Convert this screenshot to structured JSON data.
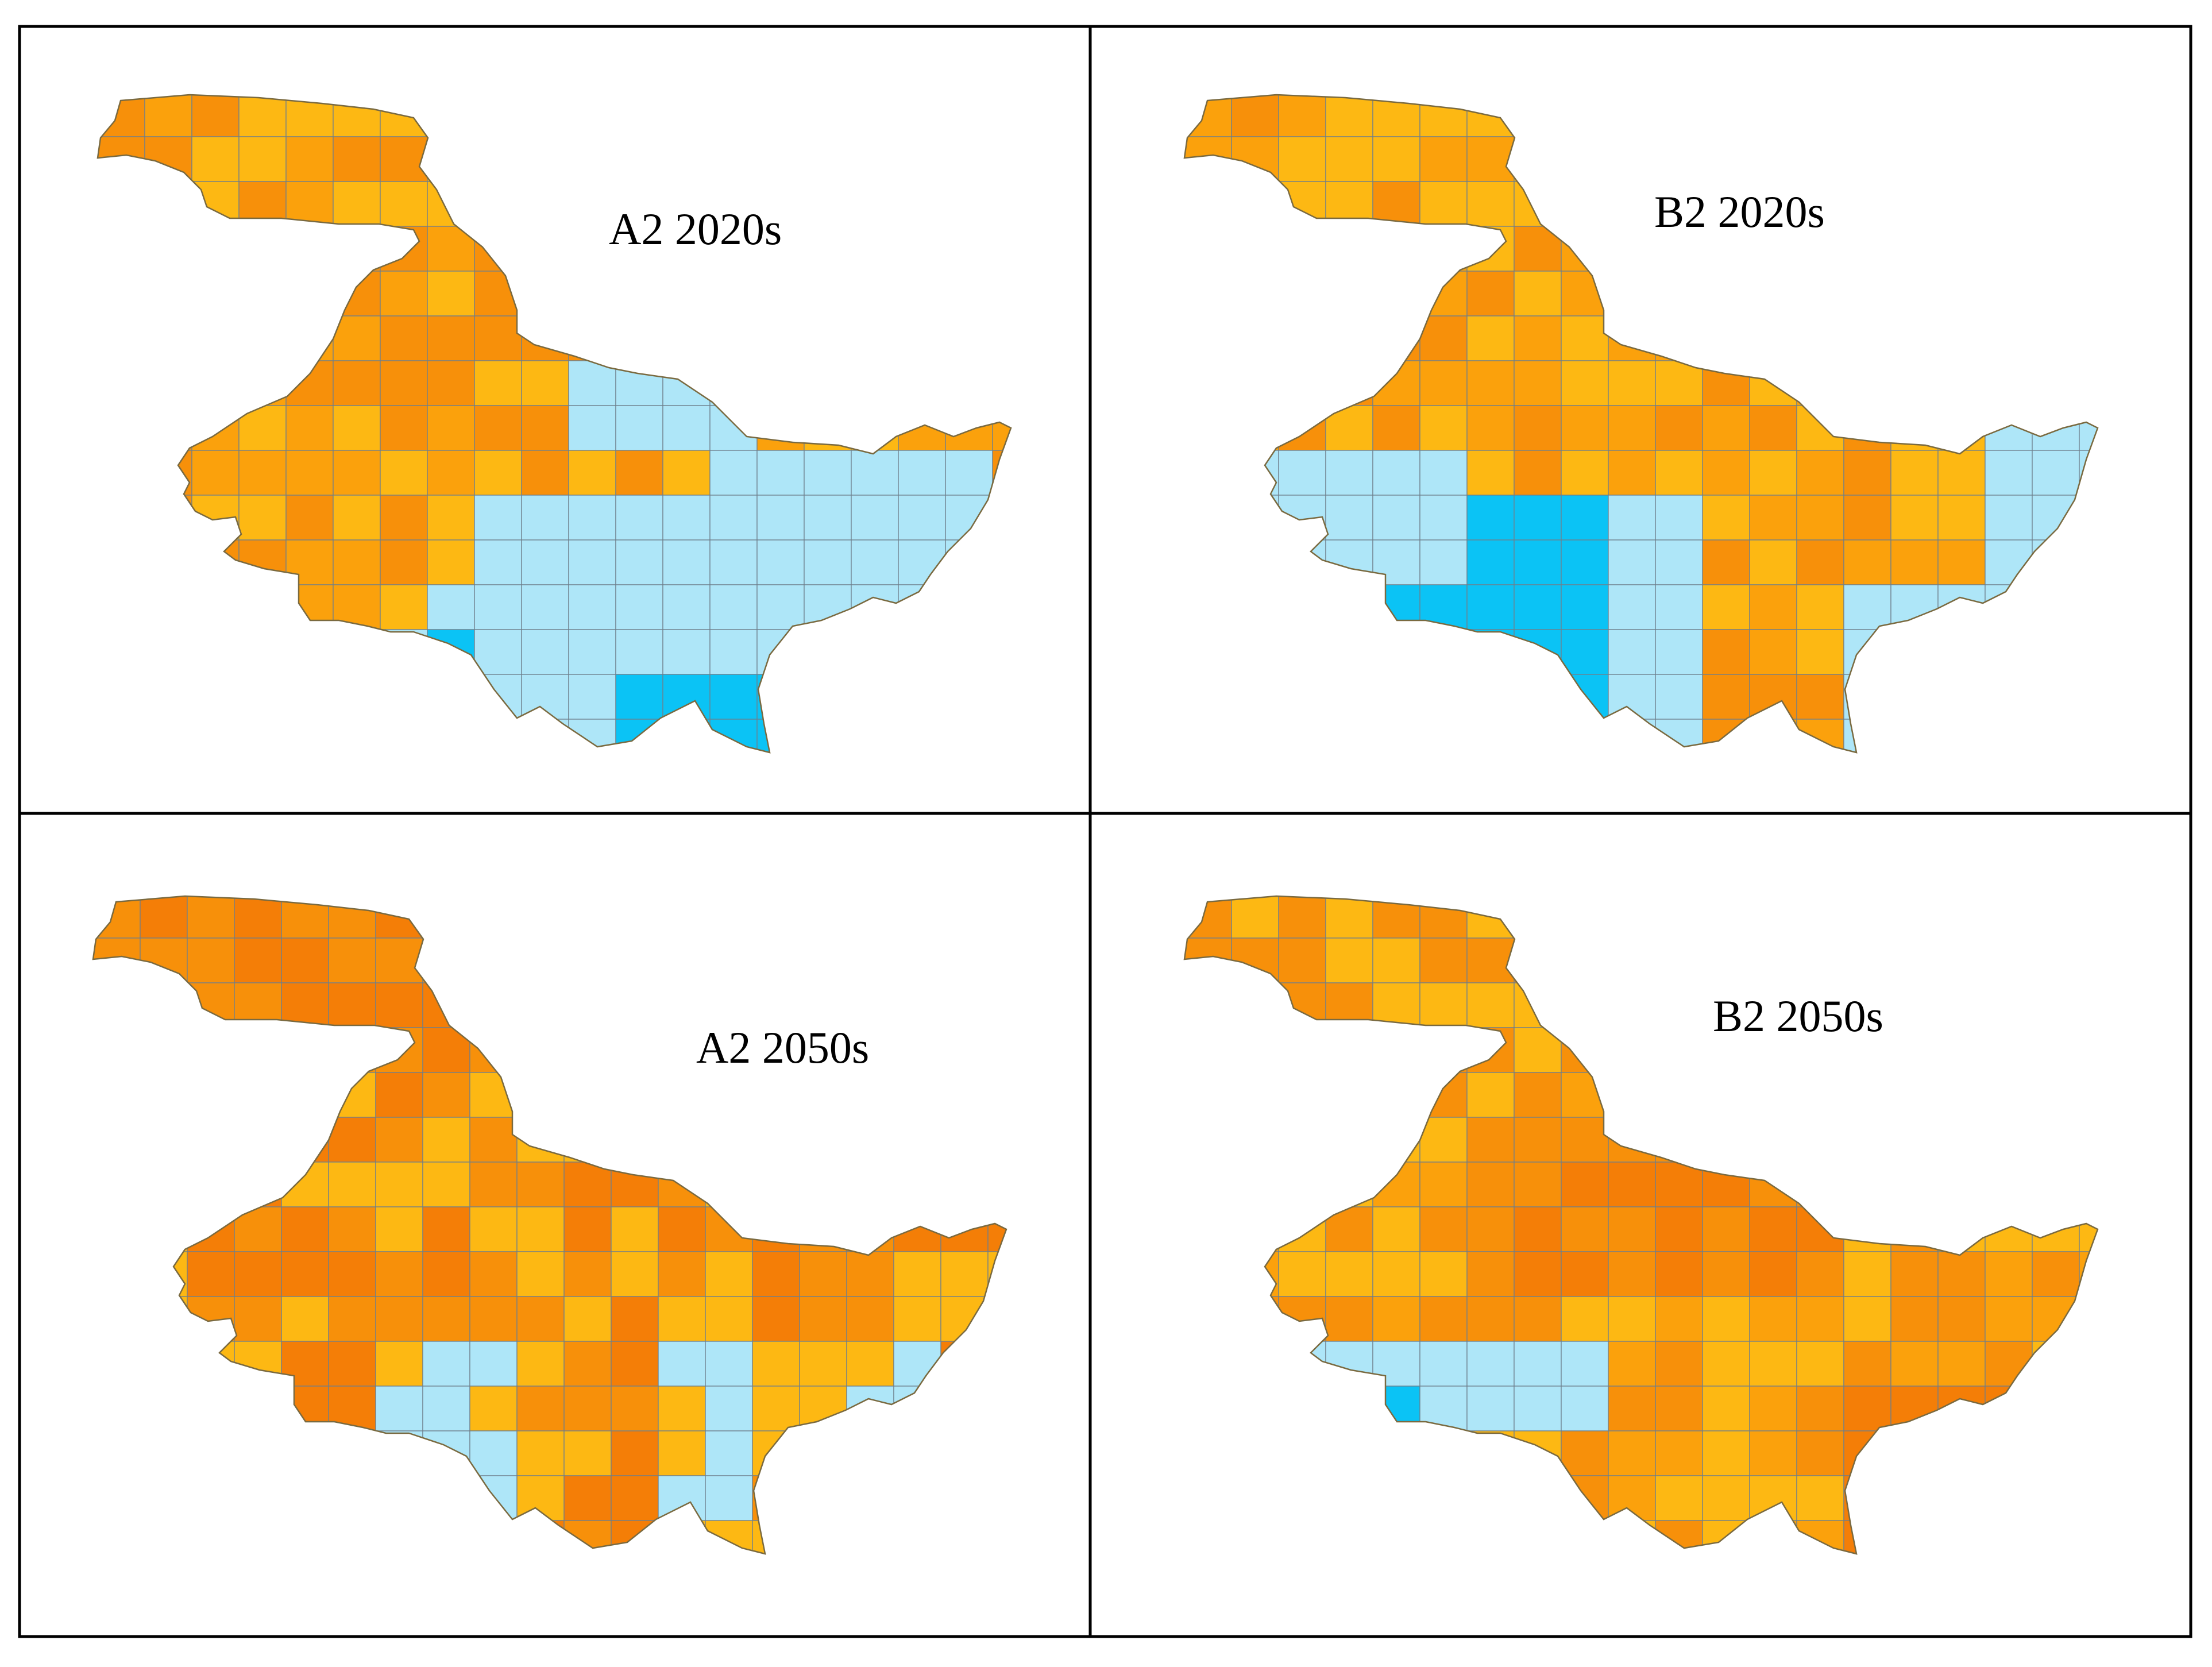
{
  "figure": {
    "panels": [
      {
        "id": "a2-2020s",
        "title": "A2 2020s",
        "palette": "a2_2020"
      },
      {
        "id": "b2-2020s",
        "title": "B2 2020s",
        "palette": "b2_2020"
      },
      {
        "id": "a2-2050s",
        "title": "A2 2050s",
        "palette": "a2_2050"
      },
      {
        "id": "b2-2050s",
        "title": "B2 2050s",
        "palette": "b2_2050"
      }
    ]
  },
  "colors": {
    "light_orange": "#FDB813",
    "orange": "#FBA10C",
    "mid_orange": "#F7900A",
    "deep_orange": "#F47E07",
    "light_blue": "#AEE6F8",
    "cyan": "#0BC3F5",
    "deep_blue": "#1565E8",
    "grid_line": "#6E7F8C",
    "border": "#000000",
    "outline": "#7A6A40"
  }
}
